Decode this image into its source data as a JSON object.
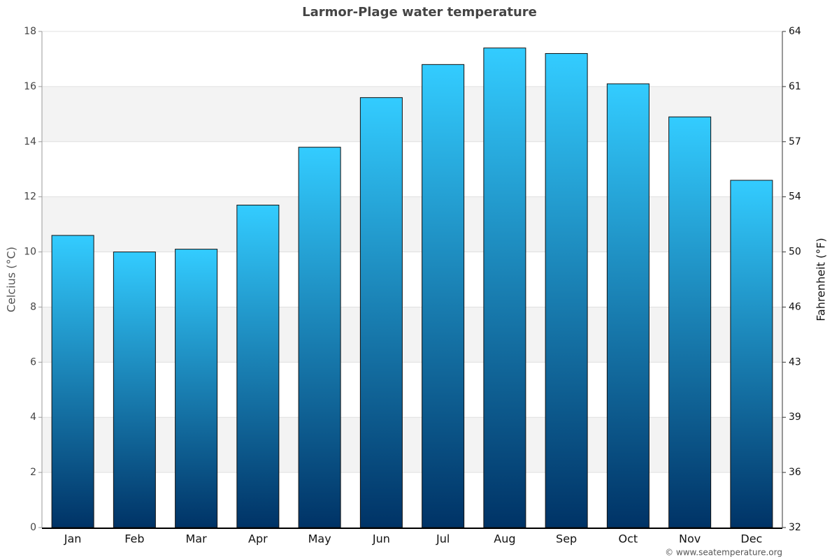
{
  "chart_data": {
    "type": "bar",
    "title": "Larmor-Plage water temperature",
    "y_label": "Celcius (°C)",
    "y2_label": "Fahrenheit (°F)",
    "source": "© www.seatemperature.org",
    "categories": [
      "Jan",
      "Feb",
      "Mar",
      "Apr",
      "May",
      "Jun",
      "Jul",
      "Aug",
      "Sep",
      "Oct",
      "Nov",
      "Dec"
    ],
    "values": [
      10.6,
      10.0,
      10.1,
      11.7,
      13.8,
      15.6,
      16.8,
      17.4,
      17.2,
      16.1,
      14.9,
      12.6
    ],
    "gradient": [
      "#33ccff",
      "#003366"
    ],
    "ylim": [
      0,
      18
    ],
    "yticks": [
      0,
      2,
      4,
      6,
      8,
      10,
      12,
      14,
      16,
      18
    ],
    "y2lim": [
      32,
      64.4
    ],
    "y2ticks": [
      32,
      {
        "value": 35.6,
        "label": "36"
      },
      {
        "value": 39.2,
        "label": "39"
      },
      {
        "value": 42.8,
        "label": "43"
      },
      {
        "value": 46.4,
        "label": "46"
      },
      50,
      {
        "value": 53.6,
        "label": "54"
      },
      {
        "value": 57.2,
        "label": "57"
      },
      {
        "value": 60.8,
        "label": "61"
      },
      {
        "value": 64.4,
        "label": "64"
      }
    ],
    "grid": true
  }
}
